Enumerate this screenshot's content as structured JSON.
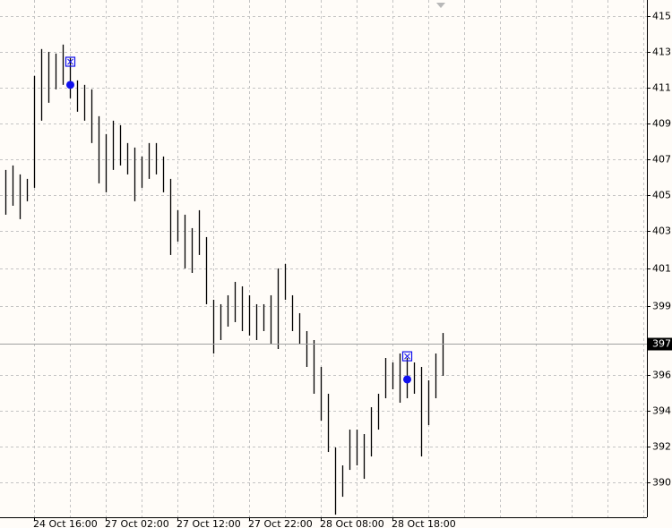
{
  "chart_data": {
    "type": "hl_bars",
    "categories": [
      null,
      null,
      null,
      null,
      "24 Oct 16:00",
      null,
      null,
      null,
      null,
      null,
      null,
      null,
      null,
      null,
      "27 Oct 02:00",
      null,
      null,
      null,
      null,
      null,
      null,
      null,
      null,
      null,
      "27 Oct 12:00",
      null,
      null,
      null,
      null,
      null,
      null,
      null,
      null,
      null,
      "27 Oct 22:00",
      null,
      null,
      null,
      null,
      null,
      null,
      null,
      null,
      null,
      "28 Oct 08:00",
      null,
      null,
      null,
      null,
      null,
      null,
      null,
      null,
      null,
      "28 Oct 18:00",
      null,
      null,
      null,
      null,
      null,
      null,
      null
    ],
    "high": [
      406.75,
      406.99,
      406.51,
      406.27,
      411.79,
      413.23,
      413.08,
      412.99,
      413.47,
      412.75,
      411.55,
      411.31,
      411.07,
      409.63,
      408.67,
      409.39,
      409.15,
      408.19,
      407.95,
      407.47,
      408.19,
      408.19,
      407.47,
      406.27,
      404.59,
      404.35,
      403.63,
      404.59,
      403.15,
      399.79,
      399.55,
      400.03,
      400.75,
      400.51,
      400.03,
      399.55,
      399.55,
      400.03,
      401.47,
      401.71,
      400.03,
      399.07,
      398.11,
      397.63,
      396.19,
      394.75,
      391.87,
      390.91,
      392.83,
      392.83,
      392.59,
      394.03,
      394.75,
      396.67,
      396.43,
      396.91,
      396.67,
      396.43,
      396.19,
      395.47,
      396.91,
      398.01
    ],
    "low": [
      404.35,
      404.83,
      404.11,
      405.07,
      405.79,
      409.39,
      410.35,
      411.07,
      411.31,
      410.59,
      409.87,
      409.39,
      408.19,
      406.03,
      405.55,
      406.75,
      406.99,
      406.51,
      405.07,
      405.79,
      406.27,
      406.51,
      405.55,
      402.19,
      402.91,
      401.47,
      401.23,
      402.19,
      399.55,
      396.91,
      397.63,
      398.35,
      398.59,
      398.11,
      397.87,
      397.63,
      398.11,
      397.39,
      397.15,
      399.79,
      398.11,
      397.39,
      396.19,
      394.75,
      393.31,
      391.63,
      388.27,
      389.23,
      390.67,
      390.91,
      390.19,
      391.39,
      392.83,
      394.51,
      394.99,
      394.27,
      394.51,
      394.75,
      391.39,
      393.07,
      394.51,
      395.71
    ],
    "color": "#000000",
    "trades": [
      {
        "bar": 9,
        "price": 411.31,
        "flag": 412.55
      },
      {
        "bar": 56,
        "price": 395.52,
        "flag": 396.76
      }
    ],
    "trade_color": "#1010ee",
    "current_price": {
      "value": 397.45,
      "label": "397"
    },
    "ylim": [
      388.13,
      415.86
    ],
    "yticks": [
      415,
      {
        "value": 413.08,
        "label": "413"
      },
      {
        "value": 411.15,
        "label": "411"
      },
      {
        "value": 409.23,
        "label": "409"
      },
      {
        "value": 407.31,
        "label": "407"
      },
      {
        "value": 405.38,
        "label": "405"
      },
      {
        "value": 403.46,
        "label": "403"
      },
      {
        "value": 401.45,
        "label": "401"
      },
      {
        "value": 399.45,
        "label": "399"
      },
      {
        "value": 395.77,
        "label": "396"
      },
      {
        "value": 393.85,
        "label": "394"
      },
      {
        "value": 391.92,
        "label": "392"
      },
      390
    ],
    "grid": true
  }
}
